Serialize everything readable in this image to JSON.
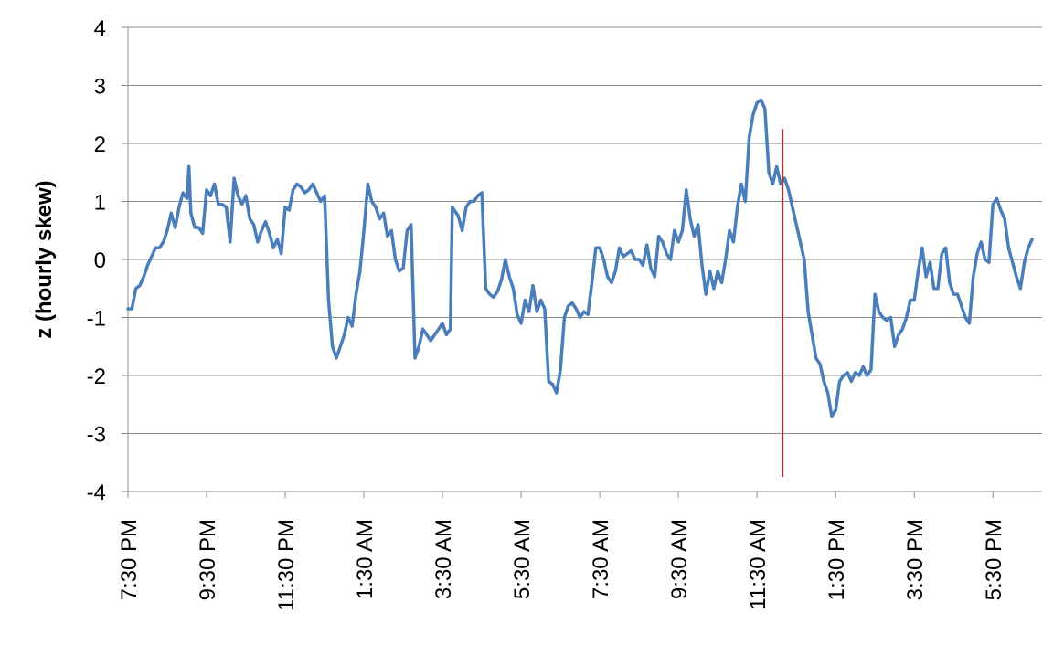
{
  "chart_data": {
    "type": "line",
    "title": "",
    "xlabel": "",
    "ylabel": "z (hourly skew)",
    "ylim": [
      -4,
      4
    ],
    "y_ticks": [
      -4,
      -3,
      -2,
      -1,
      0,
      1,
      2,
      3,
      4
    ],
    "x_range": [
      0,
      23.25
    ],
    "x_tick_positions": [
      0,
      2,
      4,
      6,
      8,
      10,
      12,
      14,
      16,
      18,
      20,
      22
    ],
    "x_tick_labels": [
      "7:30 PM",
      "9:30 PM",
      "11:30 PM",
      "1:30 AM",
      "3:30 AM",
      "5:30 AM",
      "7:30 AM",
      "9:30 AM",
      "11:30 AM",
      "1:30 PM",
      "3:30 PM",
      "5:30 PM"
    ],
    "grid": "horizontal",
    "legend": "none",
    "series": [
      {
        "color": "#4a7ebb",
        "points": [
          [
            0.0,
            -0.85
          ],
          [
            0.1,
            -0.85
          ],
          [
            0.2,
            -0.5
          ],
          [
            0.3,
            -0.45
          ],
          [
            0.4,
            -0.3
          ],
          [
            0.5,
            -0.1
          ],
          [
            0.6,
            0.05
          ],
          [
            0.7,
            0.2
          ],
          [
            0.8,
            0.2
          ],
          [
            0.9,
            0.3
          ],
          [
            1.0,
            0.5
          ],
          [
            1.1,
            0.8
          ],
          [
            1.2,
            0.55
          ],
          [
            1.3,
            0.9
          ],
          [
            1.4,
            1.15
          ],
          [
            1.5,
            1.05
          ],
          [
            1.55,
            1.6
          ],
          [
            1.6,
            0.8
          ],
          [
            1.7,
            0.55
          ],
          [
            1.8,
            0.55
          ],
          [
            1.9,
            0.45
          ],
          [
            2.0,
            1.2
          ],
          [
            2.1,
            1.1
          ],
          [
            2.2,
            1.3
          ],
          [
            2.3,
            0.95
          ],
          [
            2.4,
            0.95
          ],
          [
            2.5,
            0.9
          ],
          [
            2.6,
            0.3
          ],
          [
            2.7,
            1.4
          ],
          [
            2.8,
            1.1
          ],
          [
            2.9,
            0.95
          ],
          [
            3.0,
            1.1
          ],
          [
            3.1,
            0.7
          ],
          [
            3.2,
            0.6
          ],
          [
            3.3,
            0.3
          ],
          [
            3.4,
            0.5
          ],
          [
            3.5,
            0.65
          ],
          [
            3.6,
            0.45
          ],
          [
            3.7,
            0.2
          ],
          [
            3.8,
            0.35
          ],
          [
            3.9,
            0.1
          ],
          [
            4.0,
            0.9
          ],
          [
            4.1,
            0.85
          ],
          [
            4.2,
            1.2
          ],
          [
            4.3,
            1.3
          ],
          [
            4.4,
            1.25
          ],
          [
            4.5,
            1.15
          ],
          [
            4.6,
            1.2
          ],
          [
            4.7,
            1.3
          ],
          [
            4.8,
            1.15
          ],
          [
            4.9,
            1.0
          ],
          [
            5.0,
            1.1
          ],
          [
            5.1,
            -0.7
          ],
          [
            5.2,
            -1.5
          ],
          [
            5.3,
            -1.7
          ],
          [
            5.4,
            -1.5
          ],
          [
            5.5,
            -1.3
          ],
          [
            5.6,
            -1.0
          ],
          [
            5.7,
            -1.15
          ],
          [
            5.8,
            -0.6
          ],
          [
            5.9,
            -0.2
          ],
          [
            6.0,
            0.5
          ],
          [
            6.1,
            1.3
          ],
          [
            6.2,
            1.0
          ],
          [
            6.3,
            0.9
          ],
          [
            6.4,
            0.7
          ],
          [
            6.5,
            0.8
          ],
          [
            6.6,
            0.4
          ],
          [
            6.7,
            0.5
          ],
          [
            6.8,
            0.0
          ],
          [
            6.9,
            -0.2
          ],
          [
            7.0,
            -0.15
          ],
          [
            7.1,
            0.5
          ],
          [
            7.2,
            0.6
          ],
          [
            7.3,
            -1.7
          ],
          [
            7.4,
            -1.5
          ],
          [
            7.5,
            -1.2
          ],
          [
            7.6,
            -1.3
          ],
          [
            7.7,
            -1.4
          ],
          [
            7.8,
            -1.3
          ],
          [
            7.9,
            -1.2
          ],
          [
            8.0,
            -1.1
          ],
          [
            8.1,
            -1.3
          ],
          [
            8.2,
            -1.2
          ],
          [
            8.25,
            0.9
          ],
          [
            8.4,
            0.75
          ],
          [
            8.5,
            0.5
          ],
          [
            8.6,
            0.9
          ],
          [
            8.7,
            1.0
          ],
          [
            8.8,
            1.0
          ],
          [
            8.9,
            1.1
          ],
          [
            9.0,
            1.15
          ],
          [
            9.1,
            -0.5
          ],
          [
            9.2,
            -0.6
          ],
          [
            9.3,
            -0.65
          ],
          [
            9.4,
            -0.55
          ],
          [
            9.5,
            -0.35
          ],
          [
            9.6,
            0.0
          ],
          [
            9.7,
            -0.3
          ],
          [
            9.8,
            -0.5
          ],
          [
            9.9,
            -0.95
          ],
          [
            10.0,
            -1.1
          ],
          [
            10.1,
            -0.7
          ],
          [
            10.2,
            -0.9
          ],
          [
            10.3,
            -0.45
          ],
          [
            10.4,
            -0.9
          ],
          [
            10.5,
            -0.7
          ],
          [
            10.6,
            -0.85
          ],
          [
            10.7,
            -2.1
          ],
          [
            10.8,
            -2.15
          ],
          [
            10.9,
            -2.3
          ],
          [
            11.0,
            -1.9
          ],
          [
            11.1,
            -1.0
          ],
          [
            11.2,
            -0.8
          ],
          [
            11.3,
            -0.75
          ],
          [
            11.4,
            -0.85
          ],
          [
            11.5,
            -1.0
          ],
          [
            11.6,
            -0.9
          ],
          [
            11.7,
            -0.95
          ],
          [
            11.8,
            -0.4
          ],
          [
            11.9,
            0.2
          ],
          [
            12.0,
            0.2
          ],
          [
            12.1,
            0.0
          ],
          [
            12.2,
            -0.3
          ],
          [
            12.3,
            -0.4
          ],
          [
            12.4,
            -0.2
          ],
          [
            12.5,
            0.2
          ],
          [
            12.6,
            0.05
          ],
          [
            12.7,
            0.1
          ],
          [
            12.8,
            0.15
          ],
          [
            12.9,
            0.0
          ],
          [
            13.0,
            0.0
          ],
          [
            13.1,
            -0.1
          ],
          [
            13.2,
            0.25
          ],
          [
            13.3,
            -0.15
          ],
          [
            13.4,
            -0.3
          ],
          [
            13.5,
            0.4
          ],
          [
            13.6,
            0.3
          ],
          [
            13.7,
            0.1
          ],
          [
            13.8,
            0.0
          ],
          [
            13.9,
            0.5
          ],
          [
            14.0,
            0.3
          ],
          [
            14.1,
            0.5
          ],
          [
            14.2,
            1.2
          ],
          [
            14.3,
            0.7
          ],
          [
            14.4,
            0.4
          ],
          [
            14.5,
            0.6
          ],
          [
            14.6,
            -0.1
          ],
          [
            14.7,
            -0.6
          ],
          [
            14.8,
            -0.2
          ],
          [
            14.9,
            -0.5
          ],
          [
            15.0,
            -0.2
          ],
          [
            15.1,
            -0.4
          ],
          [
            15.2,
            0.0
          ],
          [
            15.3,
            0.5
          ],
          [
            15.4,
            0.3
          ],
          [
            15.5,
            0.9
          ],
          [
            15.6,
            1.3
          ],
          [
            15.7,
            1.0
          ],
          [
            15.8,
            2.1
          ],
          [
            15.9,
            2.5
          ],
          [
            16.0,
            2.7
          ],
          [
            16.1,
            2.75
          ],
          [
            16.2,
            2.6
          ],
          [
            16.3,
            1.5
          ],
          [
            16.4,
            1.3
          ],
          [
            16.5,
            1.6
          ],
          [
            16.6,
            1.3
          ],
          [
            16.7,
            1.4
          ],
          [
            16.8,
            1.2
          ],
          [
            16.9,
            0.9
          ],
          [
            17.0,
            0.6
          ],
          [
            17.1,
            0.3
          ],
          [
            17.2,
            0.0
          ],
          [
            17.3,
            -0.9
          ],
          [
            17.4,
            -1.3
          ],
          [
            17.5,
            -1.7
          ],
          [
            17.6,
            -1.8
          ],
          [
            17.7,
            -2.1
          ],
          [
            17.8,
            -2.3
          ],
          [
            17.9,
            -2.7
          ],
          [
            18.0,
            -2.6
          ],
          [
            18.1,
            -2.1
          ],
          [
            18.2,
            -2.0
          ],
          [
            18.3,
            -1.95
          ],
          [
            18.4,
            -2.1
          ],
          [
            18.5,
            -1.95
          ],
          [
            18.6,
            -2.0
          ],
          [
            18.7,
            -1.85
          ],
          [
            18.8,
            -2.0
          ],
          [
            18.9,
            -1.9
          ],
          [
            19.0,
            -0.6
          ],
          [
            19.1,
            -0.9
          ],
          [
            19.2,
            -1.0
          ],
          [
            19.3,
            -1.05
          ],
          [
            19.4,
            -1.0
          ],
          [
            19.5,
            -1.5
          ],
          [
            19.6,
            -1.3
          ],
          [
            19.7,
            -1.2
          ],
          [
            19.8,
            -1.0
          ],
          [
            19.9,
            -0.7
          ],
          [
            20.0,
            -0.7
          ],
          [
            20.1,
            -0.2
          ],
          [
            20.2,
            0.2
          ],
          [
            20.3,
            -0.3
          ],
          [
            20.4,
            -0.05
          ],
          [
            20.5,
            -0.5
          ],
          [
            20.6,
            -0.5
          ],
          [
            20.7,
            0.1
          ],
          [
            20.8,
            0.2
          ],
          [
            20.9,
            -0.4
          ],
          [
            21.0,
            -0.6
          ],
          [
            21.1,
            -0.6
          ],
          [
            21.2,
            -0.8
          ],
          [
            21.3,
            -1.0
          ],
          [
            21.4,
            -1.1
          ],
          [
            21.5,
            -0.3
          ],
          [
            21.6,
            0.1
          ],
          [
            21.7,
            0.3
          ],
          [
            21.8,
            0.0
          ],
          [
            21.9,
            -0.05
          ],
          [
            22.0,
            0.95
          ],
          [
            22.1,
            1.05
          ],
          [
            22.2,
            0.85
          ],
          [
            22.3,
            0.7
          ],
          [
            22.4,
            0.2
          ],
          [
            22.5,
            -0.05
          ],
          [
            22.6,
            -0.3
          ],
          [
            22.7,
            -0.5
          ],
          [
            22.8,
            -0.05
          ],
          [
            22.9,
            0.2
          ],
          [
            23.0,
            0.35
          ]
        ]
      }
    ],
    "annotations": [
      {
        "type": "vertical-line",
        "x": 16.65,
        "y_from": -3.75,
        "y_to": 2.25,
        "color": "#c0282d"
      }
    ]
  }
}
